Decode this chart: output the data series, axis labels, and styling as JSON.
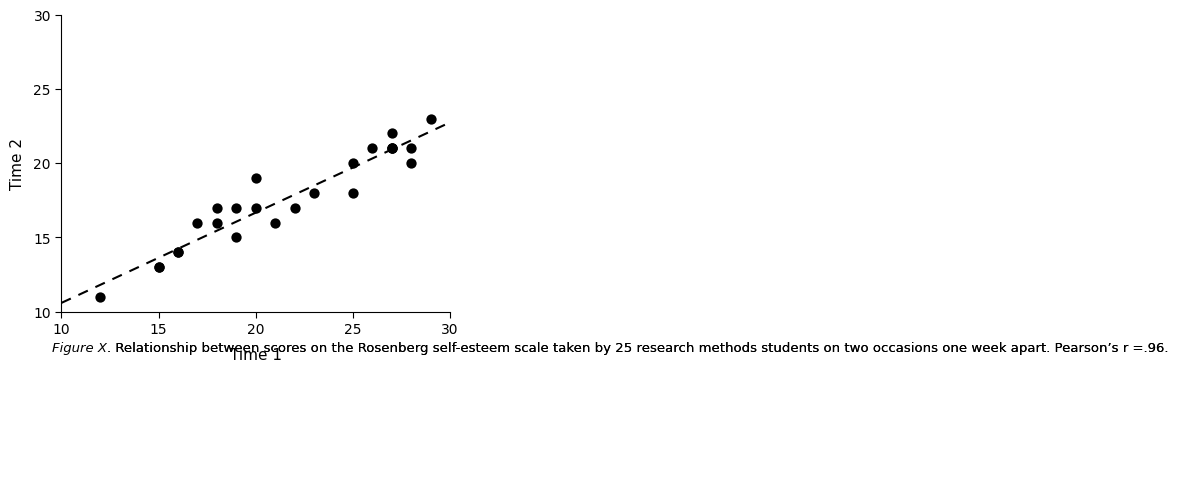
{
  "x": [
    12,
    15,
    15,
    16,
    16,
    17,
    18,
    18,
    19,
    19,
    20,
    20,
    21,
    22,
    23,
    25,
    25,
    26,
    27,
    27,
    27,
    27,
    28,
    28,
    29
  ],
  "y": [
    11,
    13,
    13,
    14,
    14,
    16,
    16,
    17,
    15,
    17,
    17,
    19,
    16,
    17,
    18,
    20,
    18,
    21,
    21,
    21,
    22,
    21,
    20,
    21,
    23
  ],
  "xlim": [
    10,
    30
  ],
  "ylim": [
    10,
    30
  ],
  "xticks": [
    10,
    15,
    20,
    25,
    30
  ],
  "yticks": [
    10,
    15,
    20,
    25,
    30
  ],
  "xlabel": "Time 1",
  "ylabel": "Time 2",
  "dot_color": "#000000",
  "dot_size": 55,
  "line_color": "#000000",
  "line_style": "--",
  "line_width": 1.5,
  "caption_italic": "Figure X",
  "caption_normal": ". Relationship between scores on the Rosenberg self-esteem scale taken by 25 research methods students on two occasions one week apart. Pearson’s r =.96.",
  "bg_color": "#ffffff",
  "caption_fontsize": 9.5,
  "axis_fontsize": 11,
  "tick_fontsize": 10
}
